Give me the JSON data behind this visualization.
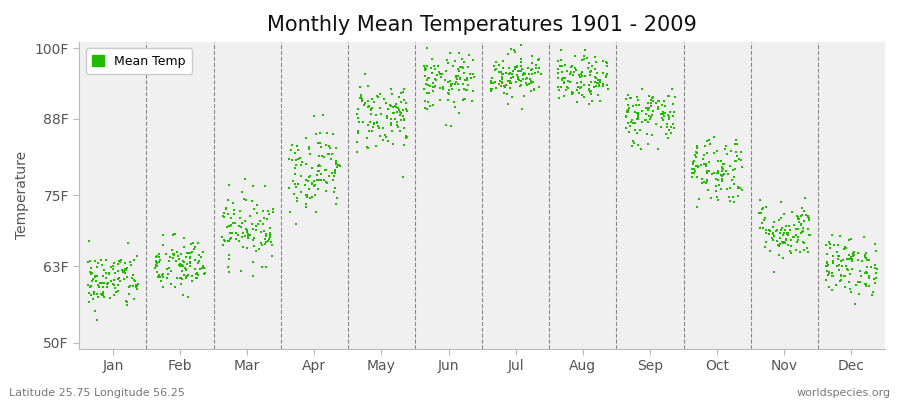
{
  "title": "Monthly Mean Temperatures 1901 - 2009",
  "ylabel": "Temperature",
  "yticks": [
    50,
    63,
    75,
    88,
    100
  ],
  "ytick_labels": [
    "50F",
    "63F",
    "75F",
    "88F",
    "100F"
  ],
  "ylim": [
    49,
    101
  ],
  "months": [
    "Jan",
    "Feb",
    "Mar",
    "Apr",
    "May",
    "Jun",
    "Jul",
    "Aug",
    "Sep",
    "Oct",
    "Nov",
    "Dec"
  ],
  "month_centers": [
    1,
    2,
    3,
    4,
    5,
    6,
    7,
    8,
    9,
    10,
    11,
    12
  ],
  "background_color": "#f0f0f0",
  "plot_bg_color": "#f0f0f0",
  "dot_color": "#22bb00",
  "dot_size": 2.5,
  "title_fontsize": 15,
  "axis_fontsize": 10,
  "tick_fontsize": 10,
  "legend_label": "Mean Temp",
  "footnote_left": "Latitude 25.75 Longitude 56.25",
  "footnote_right": "worldspecies.org",
  "monthly_mean_F": [
    60.5,
    63.0,
    69.5,
    79.5,
    88.5,
    94.0,
    95.5,
    94.5,
    88.5,
    79.5,
    69.0,
    63.0
  ],
  "monthly_std_F": [
    2.5,
    2.5,
    3.0,
    3.5,
    3.0,
    2.5,
    2.0,
    2.0,
    2.5,
    3.0,
    2.5,
    2.5
  ],
  "n_years": 109,
  "seed": 42
}
